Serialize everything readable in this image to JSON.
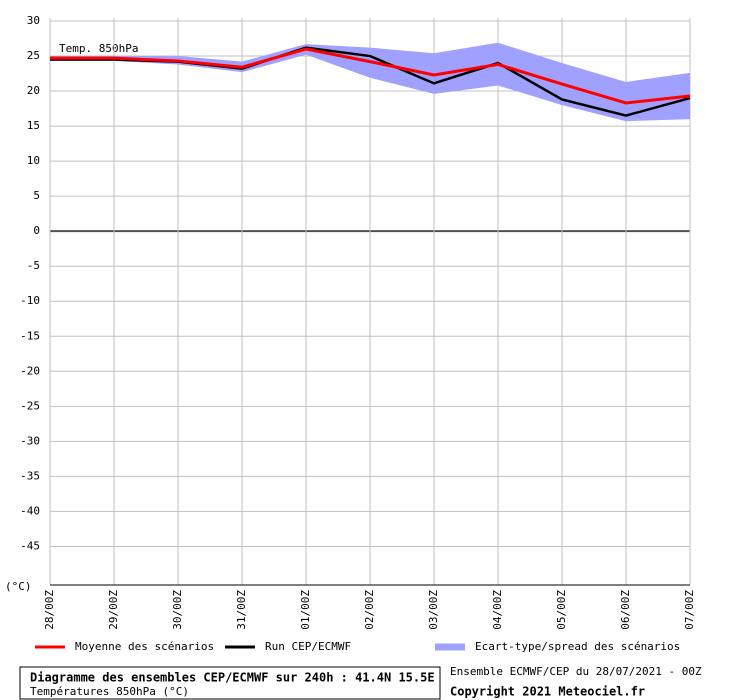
{
  "chart_data": {
    "type": "line",
    "annotation": "Temp. 850hPa",
    "y_unit": "(°C)",
    "categories": [
      "28/00Z",
      "29/00Z",
      "30/00Z",
      "31/00Z",
      "01/00Z",
      "02/00Z",
      "03/00Z",
      "04/00Z",
      "05/00Z",
      "06/00Z",
      "07/00Z"
    ],
    "series": [
      {
        "name": "Moyenne des scénarios",
        "color": "#ff0000",
        "values": [
          24.7,
          24.7,
          24.3,
          23.4,
          26.0,
          24.2,
          22.3,
          23.8,
          21.0,
          18.3,
          19.3
        ]
      },
      {
        "name": "Run CEP/ECMWF",
        "color": "#000000",
        "values": [
          24.5,
          24.5,
          24.2,
          23.2,
          26.2,
          25.0,
          21.1,
          24.0,
          18.8,
          16.5,
          19.0
        ]
      },
      {
        "name": "Ecart-type/spread des scénarios",
        "color": "#a0a0ff",
        "upper": [
          25.0,
          25.0,
          25.0,
          24.2,
          26.7,
          26.2,
          25.4,
          26.9,
          24.0,
          21.3,
          22.6
        ],
        "lower": [
          24.3,
          24.3,
          23.8,
          22.7,
          25.2,
          21.9,
          19.6,
          20.8,
          18.0,
          15.7,
          16.0
        ]
      }
    ],
    "ylim": [
      -50.5,
      30
    ],
    "yticks": [
      30,
      25,
      20,
      15,
      10,
      5,
      0,
      -5,
      -10,
      -15,
      -20,
      -25,
      -30,
      -35,
      -40,
      -45
    ],
    "grid": true,
    "footer": {
      "title": "Diagramme des ensembles CEP/ECMWF sur 240h : 41.4N 15.5E",
      "subtitle": "Températures 850hPa (°C)",
      "run": "Ensemble ECMWF/CEP du 28/07/2021 - 00Z",
      "copyright": "Copyright 2021 Meteociel.fr"
    }
  }
}
